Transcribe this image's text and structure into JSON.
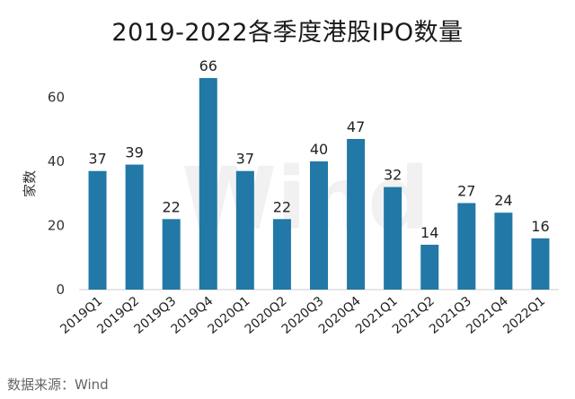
{
  "chart_data": {
    "type": "bar",
    "title": "2019-2022各季度港股IPO数量",
    "ylabel": "家数",
    "xlabel": "",
    "categories": [
      "2019Q1",
      "2019Q2",
      "2019Q3",
      "2019Q4",
      "2020Q1",
      "2020Q2",
      "2020Q3",
      "2020Q4",
      "2021Q1",
      "2021Q2",
      "2021Q3",
      "2021Q4",
      "2022Q1"
    ],
    "values": [
      37,
      39,
      22,
      66,
      37,
      22,
      40,
      47,
      32,
      14,
      27,
      24,
      16
    ],
    "ylim": [
      0,
      70
    ],
    "yticks": [
      0,
      20,
      40,
      60
    ],
    "grid": false,
    "bar_color": "#2278a6"
  },
  "source": "数据来源：Wind",
  "watermark": "Wind"
}
